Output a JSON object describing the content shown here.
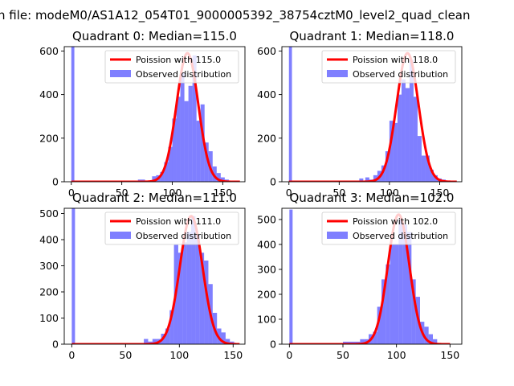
{
  "figure": {
    "suptitle": "n file: modeM0/AS1A12_054T01_9000005392_38754cztM0_level2_quad_clean"
  },
  "chart_data": [
    {
      "type": "bar",
      "title": "Quadrant 0: Median=115.0",
      "xlim": [
        -7,
        172
      ],
      "ylim": [
        0,
        620
      ],
      "xticks": [
        0,
        50,
        100,
        150
      ],
      "yticks": [
        0,
        200,
        400,
        600
      ],
      "legend": {
        "position": "top-right",
        "labels": [
          "Poission with 115.0",
          "Observed distribution"
        ]
      },
      "series": [
        {
          "name": "Observed distribution",
          "kind": "histogram",
          "color": "#0000ff",
          "opacity": 0.5,
          "bins": [
            [
              0,
              3,
              620
            ],
            [
              66,
              73,
              10
            ],
            [
              80,
              84,
              25
            ],
            [
              84,
              88,
              30
            ],
            [
              88,
              92,
              45
            ],
            [
              92,
              96,
              90
            ],
            [
              96,
              100,
              160
            ],
            [
              100,
              104,
              290
            ],
            [
              104,
              108,
              390
            ],
            [
              108,
              112,
              500
            ],
            [
              112,
              116,
              370
            ],
            [
              116,
              120,
              440
            ],
            [
              120,
              124,
              580
            ],
            [
              124,
              128,
              280
            ],
            [
              128,
              132,
              355
            ],
            [
              132,
              136,
              180
            ],
            [
              136,
              140,
              140
            ],
            [
              140,
              144,
              70
            ],
            [
              144,
              148,
              40
            ],
            [
              148,
              152,
              20
            ],
            [
              152,
              156,
              10
            ]
          ]
        },
        {
          "name": "Poission with 115.0",
          "kind": "line",
          "color": "#ff0000",
          "mean": 115.0,
          "peak": 590,
          "x_range": [
            0,
            167
          ]
        }
      ]
    },
    {
      "type": "bar",
      "title": "Quadrant 1: Median=118.0",
      "xlim": [
        -7,
        172
      ],
      "ylim": [
        0,
        620
      ],
      "xticks": [
        0,
        50,
        100,
        150
      ],
      "yticks": [
        0,
        200,
        400,
        600
      ],
      "legend": {
        "position": "top-right",
        "labels": [
          "Poission with 118.0",
          "Observed distribution"
        ]
      },
      "series": [
        {
          "name": "Observed distribution",
          "kind": "histogram",
          "color": "#0000ff",
          "opacity": 0.5,
          "bins": [
            [
              0,
              3,
              620
            ],
            [
              70,
              74,
              15
            ],
            [
              76,
              80,
              20
            ],
            [
              80,
              84,
              10
            ],
            [
              84,
              88,
              30
            ],
            [
              88,
              92,
              50
            ],
            [
              92,
              96,
              75
            ],
            [
              96,
              100,
              140
            ],
            [
              100,
              104,
              280
            ],
            [
              104,
              108,
              270
            ],
            [
              108,
              112,
              400
            ],
            [
              112,
              116,
              470
            ],
            [
              116,
              120,
              430
            ],
            [
              120,
              124,
              560
            ],
            [
              124,
              128,
              390
            ],
            [
              128,
              132,
              210
            ],
            [
              132,
              136,
              120
            ],
            [
              136,
              140,
              120
            ],
            [
              140,
              144,
              55
            ],
            [
              144,
              148,
              30
            ],
            [
              148,
              152,
              15
            ],
            [
              152,
              156,
              10
            ]
          ]
        },
        {
          "name": "Poission with 118.0",
          "kind": "line",
          "color": "#ff0000",
          "mean": 118.0,
          "peak": 590,
          "x_range": [
            0,
            167
          ]
        }
      ]
    },
    {
      "type": "bar",
      "title": "Quadrant 2: Median=111.0",
      "xlim": [
        -7,
        161
      ],
      "ylim": [
        0,
        520
      ],
      "xticks": [
        0,
        50,
        100,
        150
      ],
      "yticks": [
        0,
        100,
        200,
        300,
        400,
        500
      ],
      "legend": {
        "position": "top-right",
        "labels": [
          "Poission with 111.0",
          "Observed distribution"
        ]
      },
      "series": [
        {
          "name": "Observed distribution",
          "kind": "histogram",
          "color": "#0000ff",
          "opacity": 0.5,
          "bins": [
            [
              0,
              3,
              520
            ],
            [
              67,
              71,
              20
            ],
            [
              71,
              75,
              10
            ],
            [
              75,
              79,
              20
            ],
            [
              79,
              83,
              20
            ],
            [
              83,
              87,
              40
            ],
            [
              87,
              91,
              60
            ],
            [
              91,
              95,
              130
            ],
            [
              95,
              99,
              380
            ],
            [
              99,
              103,
              350
            ],
            [
              103,
              107,
              390
            ],
            [
              107,
              111,
              430
            ],
            [
              111,
              115,
              490
            ],
            [
              115,
              119,
              420
            ],
            [
              119,
              123,
              350
            ],
            [
              123,
              127,
              320
            ],
            [
              127,
              131,
              230
            ],
            [
              131,
              135,
              120
            ],
            [
              135,
              139,
              60
            ],
            [
              139,
              143,
              45
            ],
            [
              143,
              147,
              20
            ],
            [
              147,
              151,
              10
            ]
          ]
        },
        {
          "name": "Poission with 111.0",
          "kind": "line",
          "color": "#ff0000",
          "mean": 111.0,
          "peak": 490,
          "x_range": [
            0,
            156
          ]
        }
      ]
    },
    {
      "type": "bar",
      "title": "Quadrant 3: Median=102.0",
      "xlim": [
        -7,
        161
      ],
      "ylim": [
        0,
        545
      ],
      "xticks": [
        0,
        50,
        100,
        150
      ],
      "yticks": [
        0,
        100,
        200,
        300,
        400,
        500
      ],
      "legend": {
        "position": "top-right",
        "labels": [
          "Poission with 102.0",
          "Observed distribution"
        ]
      },
      "series": [
        {
          "name": "Observed distribution",
          "kind": "histogram",
          "color": "#0000ff",
          "opacity": 0.5,
          "bins": [
            [
              0,
              3,
              540
            ],
            [
              50,
              66,
              10
            ],
            [
              66,
              70,
              20
            ],
            [
              70,
              74,
              20
            ],
            [
              74,
              78,
              40
            ],
            [
              78,
              82,
              50
            ],
            [
              82,
              86,
              150
            ],
            [
              86,
              90,
              260
            ],
            [
              90,
              94,
              320
            ],
            [
              94,
              98,
              400
            ],
            [
              98,
              102,
              400
            ],
            [
              102,
              106,
              500
            ],
            [
              106,
              110,
              480
            ],
            [
              110,
              114,
              450
            ],
            [
              114,
              118,
              260
            ],
            [
              118,
              122,
              190
            ],
            [
              122,
              126,
              90
            ],
            [
              126,
              130,
              70
            ],
            [
              130,
              134,
              40
            ],
            [
              134,
              138,
              20
            ]
          ]
        },
        {
          "name": "Poission with 102.0",
          "kind": "line",
          "color": "#ff0000",
          "mean": 102.0,
          "peak": 520,
          "x_range": [
            0,
            150
          ]
        }
      ]
    }
  ]
}
